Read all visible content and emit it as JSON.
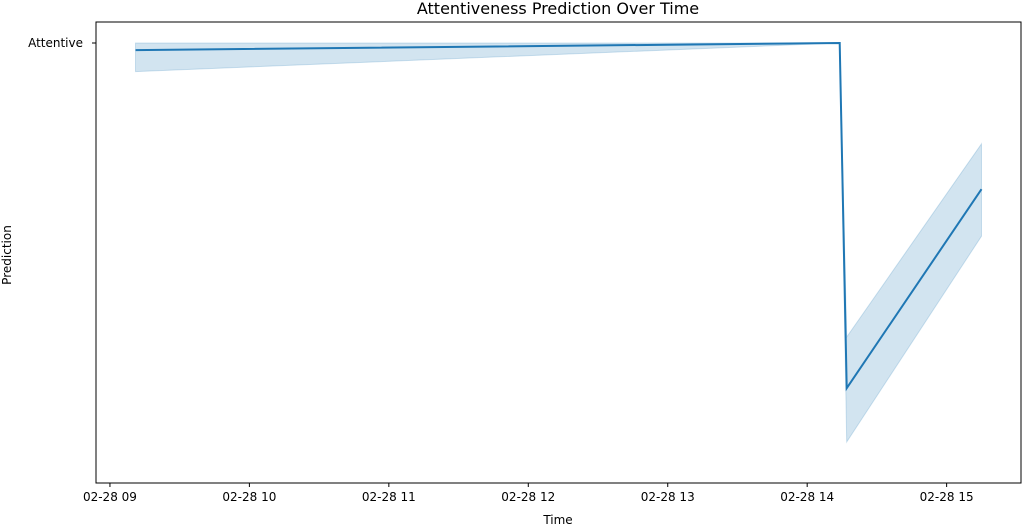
{
  "chart_data": {
    "type": "line",
    "title": "Attentiveness Prediction Over Time",
    "xlabel": "Time",
    "ylabel": "Prediction",
    "x_ticks": [
      "02-28 09",
      "02-28 10",
      "02-28 11",
      "02-28 12",
      "02-28 13",
      "02-28 14",
      "02-28 15"
    ],
    "y_ticks": [
      "Attentive"
    ],
    "grid": false,
    "xlim": [
      "2024-02-28 08:54",
      "2024-02-28 15:32"
    ],
    "ylim": [
      0.0,
      1.0
    ],
    "series": [
      {
        "color": "#1f77b4",
        "points": [
          {
            "x": "2024-02-28 09:11",
            "y": 0.983,
            "lower": 0.932,
            "upper": 1.0
          },
          {
            "x": "2024-02-28 14:14",
            "y": 1.0,
            "lower": 1.0,
            "upper": 1.0
          },
          {
            "x": "2024-02-28 14:17",
            "y": 0.178,
            "lower": 0.05,
            "upper": 0.3
          },
          {
            "x": "2024-02-28 15:15",
            "y": 0.652,
            "lower": 0.54,
            "upper": 0.76
          }
        ]
      }
    ]
  }
}
